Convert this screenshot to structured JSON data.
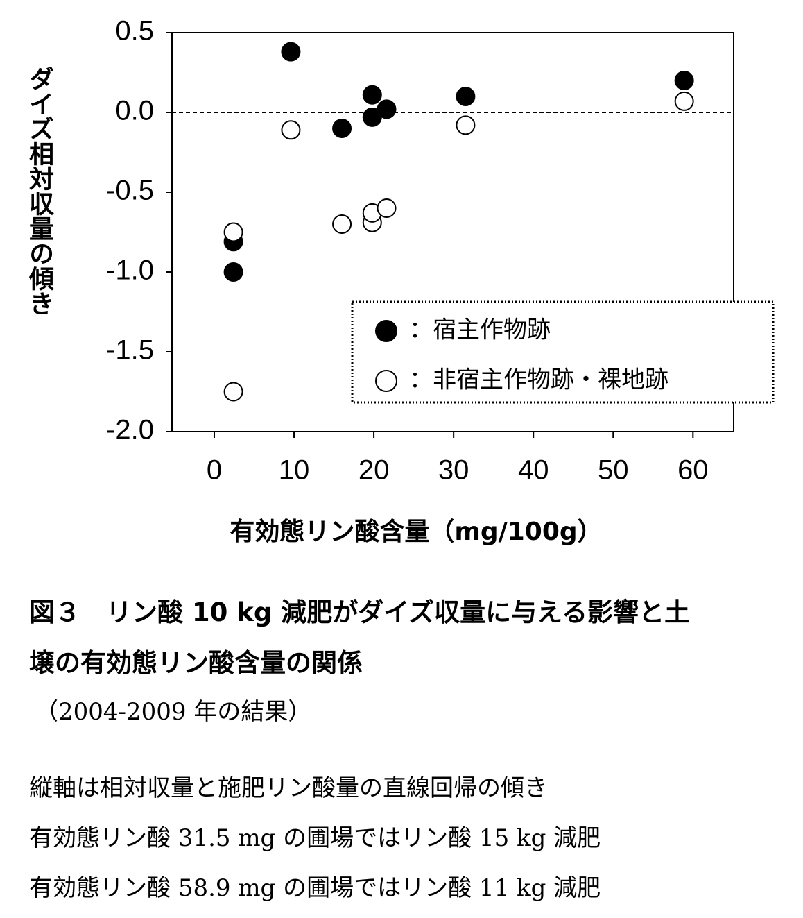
{
  "chart_data": {
    "type": "scatter",
    "y_label": "ダイズ相対収量の傾き",
    "x_label": "有効態リン酸含量（mg/100g）",
    "xlim": [
      -5.3,
      65.1
    ],
    "ylim": [
      -2.0,
      0.5
    ],
    "xticks": [
      0,
      10,
      20,
      30,
      40,
      50,
      60
    ],
    "yticks": [
      0.5,
      {
        "value": 0,
        "label": "0.0"
      },
      -0.5,
      {
        "value": -1,
        "label": "-1.0"
      },
      -1.5,
      {
        "value": -2,
        "label": "-2.0"
      }
    ],
    "hline": 0,
    "series": [
      {
        "name": "：宿主作物跡",
        "color": "#000000",
        "edgecolor": "#000000",
        "x": [
          2.4,
          2.4,
          9.6,
          16.0,
          19.8,
          19.8,
          21.6,
          31.5,
          58.9
        ],
        "values": [
          -0.81,
          -1.0,
          0.38,
          -0.1,
          0.11,
          -0.03,
          0.02,
          0.1,
          0.2
        ]
      },
      {
        "name": "：非宿主作物跡・裸地跡",
        "color": "#ffffff",
        "edgecolor": "#000000",
        "x": [
          2.4,
          2.4,
          9.6,
          16.0,
          19.8,
          19.8,
          21.6,
          31.5,
          58.9
        ],
        "values": [
          -0.75,
          -1.75,
          -0.11,
          -0.7,
          -0.69,
          -0.63,
          -0.6,
          -0.08,
          0.07
        ]
      }
    ]
  },
  "caption": {
    "title_lines": [
      "図３　リン酸 10 kg 減肥がダイズ収量に与える影響と土",
      "壌の有効態リン酸含量の関係"
    ],
    "period": "（2004-2009 年の結果）",
    "notes": [
      "縦軸は相対収量と施肥リン酸量の直線回帰の傾き",
      "有効態リン酸 31.5 mg の圃場ではリン酸 15 kg 減肥",
      "有効態リン酸 58.9 mg の圃場ではリン酸 11 kg 減肥"
    ]
  }
}
